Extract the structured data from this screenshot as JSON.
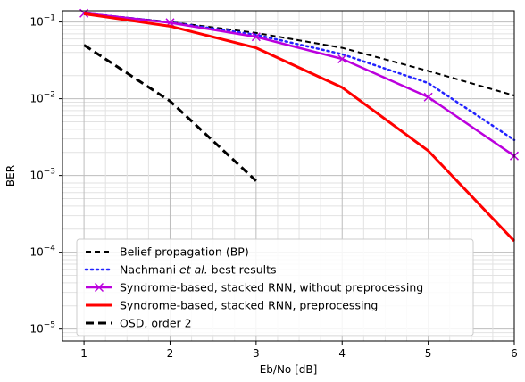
{
  "chart_data": {
    "type": "line",
    "title": "",
    "xlabel": "Eb/No [dB]",
    "ylabel": "BER",
    "xlim": [
      0.75,
      6.0
    ],
    "ylim": [
      7e-06,
      0.14
    ],
    "yscale": "log",
    "grid": "major and minor on both axes",
    "legend_position": "lower-left",
    "x_ticks": [
      1,
      2,
      3,
      4,
      5,
      6
    ],
    "x_tick_labels": [
      "1",
      "2",
      "3",
      "4",
      "5",
      "6"
    ],
    "y_ticks": [
      1e-05,
      0.0001,
      0.001,
      0.01,
      0.1
    ],
    "y_tick_labels": [
      {
        "base": "10",
        "exp": "−5"
      },
      {
        "base": "10",
        "exp": "−4"
      },
      {
        "base": "10",
        "exp": "−3"
      },
      {
        "base": "10",
        "exp": "−2"
      },
      {
        "base": "10",
        "exp": "−1"
      }
    ],
    "series": [
      {
        "name": "Belief propagation (BP)",
        "color": "#000000",
        "style": "dashed-thin",
        "marker": "none",
        "x": [
          1,
          2,
          3,
          4,
          5,
          6
        ],
        "y": [
          0.13,
          0.1,
          0.072,
          0.046,
          0.023,
          0.011
        ]
      },
      {
        "name_parts": [
          "Nachmani ",
          "et al.",
          " best results"
        ],
        "color": "#2222ff",
        "style": "dotted",
        "marker": "none",
        "x": [
          1,
          2,
          3,
          4,
          5,
          6
        ],
        "y": [
          0.13,
          0.099,
          0.068,
          0.038,
          0.016,
          0.0029
        ]
      },
      {
        "name": "Syndrome-based, stacked RNN, without preprocessing",
        "color": "#bb00dd",
        "style": "solid",
        "marker": "x",
        "x": [
          1,
          2,
          3,
          4,
          5,
          6
        ],
        "y": [
          0.13,
          0.098,
          0.064,
          0.033,
          0.0105,
          0.0018
        ]
      },
      {
        "name": "Syndrome-based, stacked RNN, preprocessing",
        "color": "#ff0000",
        "style": "solid",
        "marker": "none",
        "x": [
          1,
          2,
          3,
          4,
          5,
          6
        ],
        "y": [
          0.128,
          0.088,
          0.046,
          0.014,
          0.0021,
          0.00014
        ]
      },
      {
        "name": "OSD, order 2",
        "color": "#000000",
        "style": "dashed-thick",
        "marker": "none",
        "x": [
          1,
          2,
          3
        ],
        "y": [
          0.05,
          0.0093,
          0.00085
        ]
      }
    ]
  }
}
